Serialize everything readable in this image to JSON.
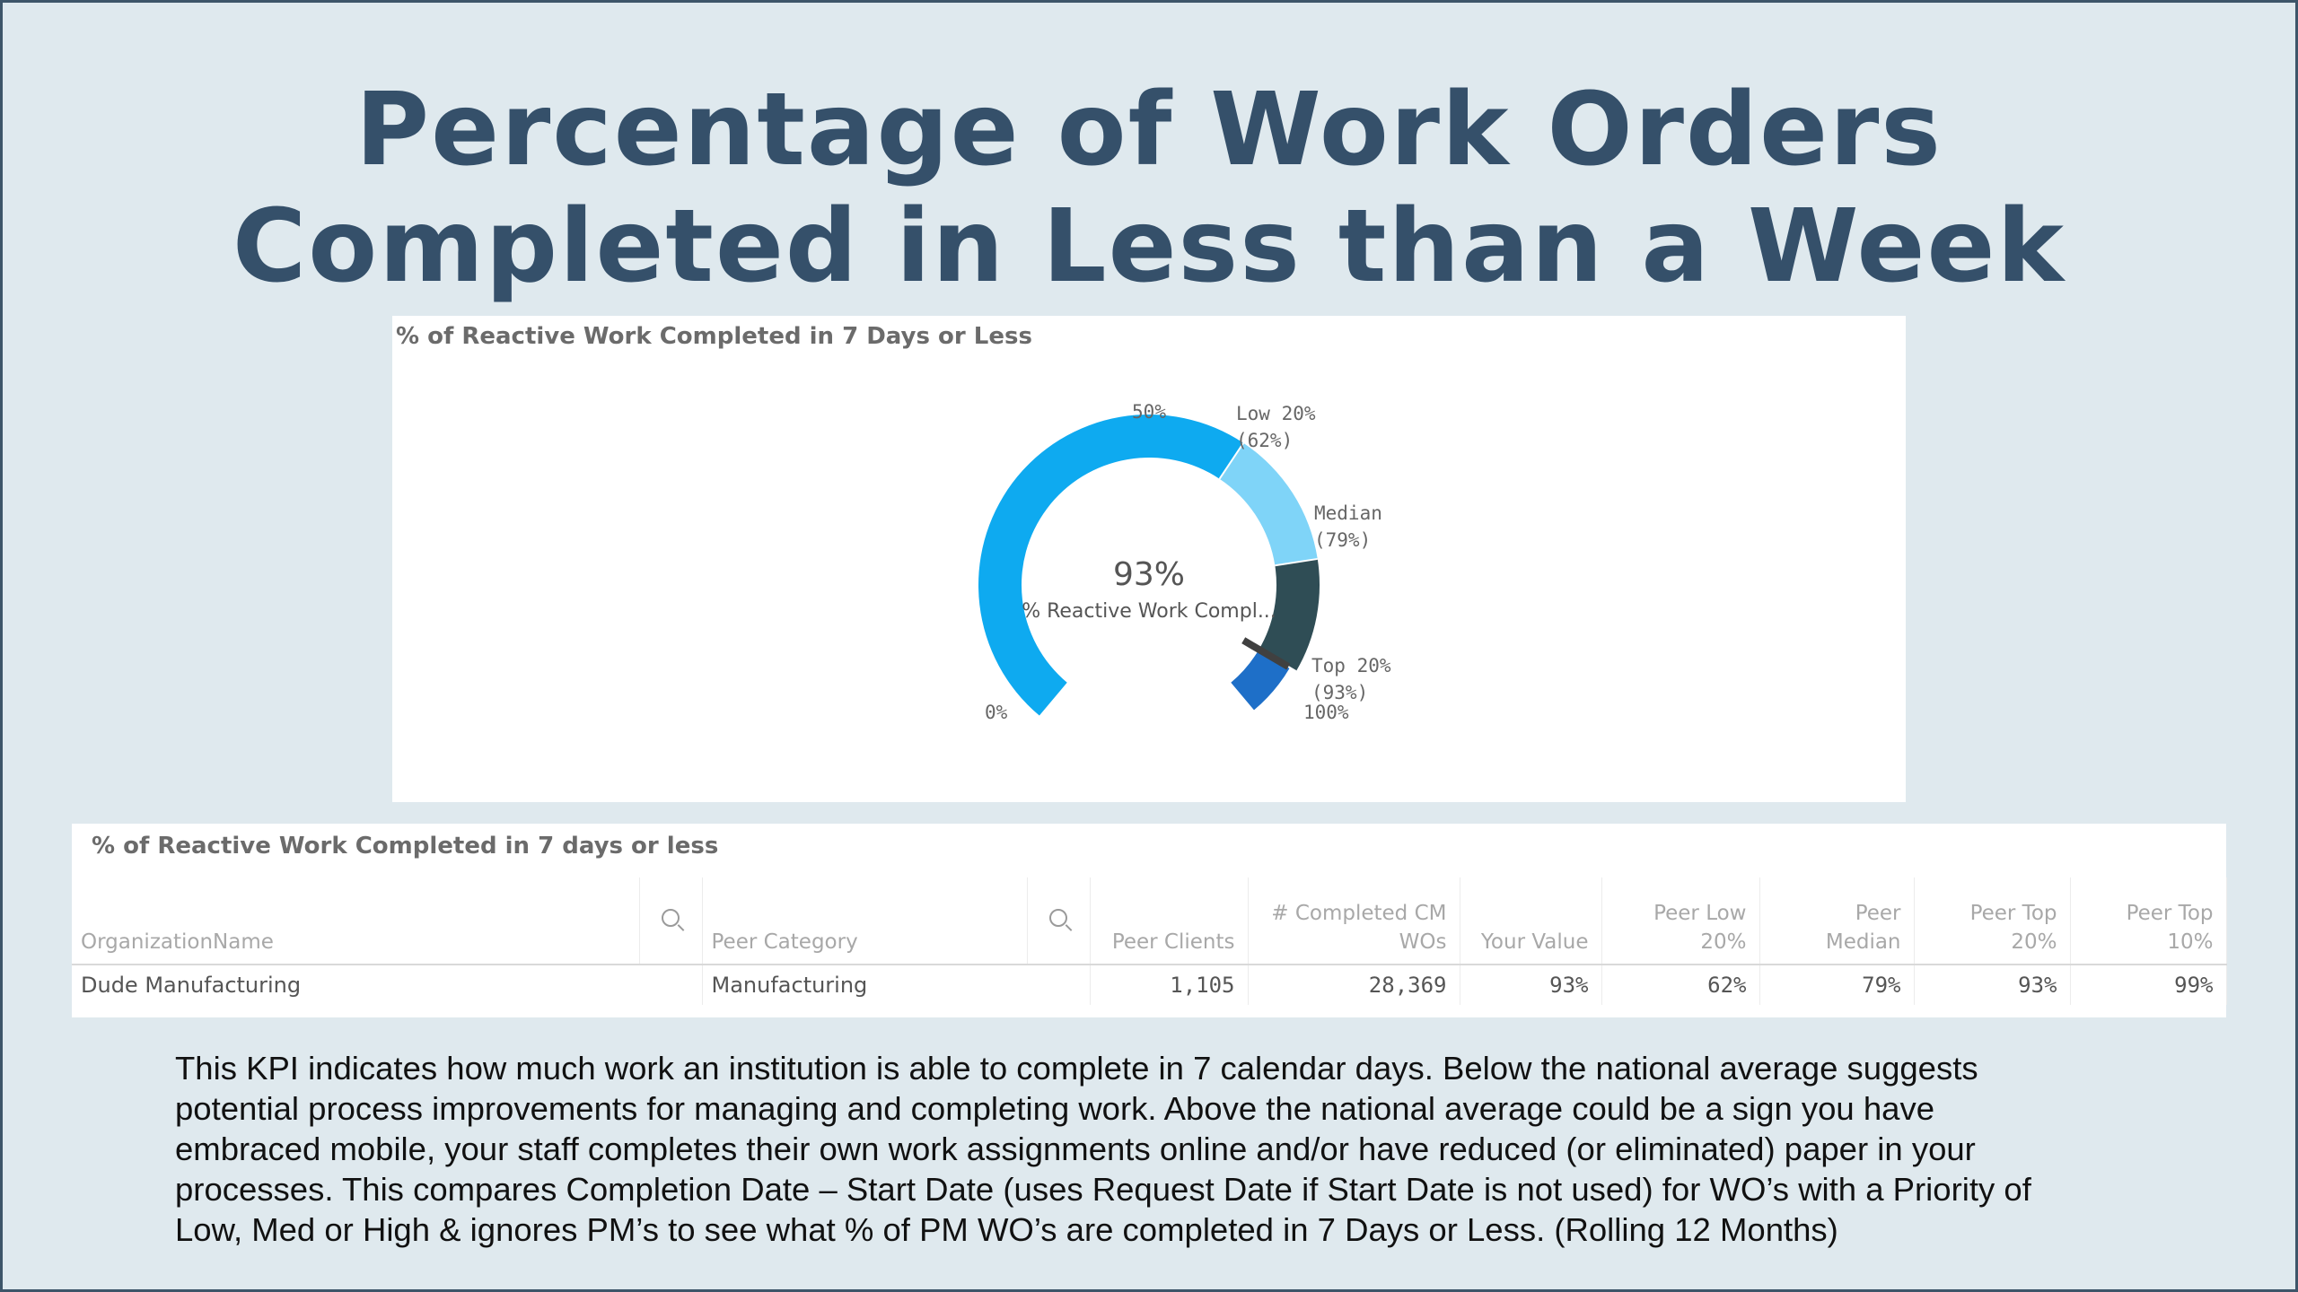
{
  "slide": {
    "title_lines": [
      "Percentage of Work Orders",
      "Completed in Less than a Week"
    ]
  },
  "gauge": {
    "panel_title": "% of Reactive Work Completed in 7 Days or Less",
    "value_text": "93%",
    "measure_label": "% Reactive Work Compl...",
    "labels": {
      "zero": "0%",
      "fifty": "50%",
      "hundred": "100%",
      "low20_line1": "Low 20%",
      "low20_line2": "(62%)",
      "median_line1": "Median",
      "median_line2": "(79%)",
      "top20_line1": "Top 20%",
      "top20_line2": "(93%)"
    },
    "colors": {
      "main": "#0eaaf0",
      "low": "#7fd4f8",
      "median": "#2f4d55",
      "top": "#1e6fc8"
    }
  },
  "chart_data": {
    "type": "gauge",
    "title": "% of Reactive Work Completed in 7 Days or Less",
    "value": 93,
    "min": 0,
    "max": 100,
    "unit": "%",
    "ticks": [
      0,
      50,
      100
    ],
    "bands": [
      {
        "name": "Low 20%",
        "from": 0,
        "to": 62,
        "color": "#0eaaf0"
      },
      {
        "name": "Median",
        "from": 62,
        "to": 79,
        "color": "#7fd4f8"
      },
      {
        "name": "Top 20%",
        "from": 79,
        "to": 93,
        "color": "#2f4d55"
      },
      {
        "name": "",
        "from": 93,
        "to": 100,
        "color": "#1e6fc8"
      }
    ],
    "markers": [
      {
        "name": "Low 20%",
        "value": 62
      },
      {
        "name": "Median",
        "value": 79
      },
      {
        "name": "Top 20%",
        "value": 93
      }
    ]
  },
  "table": {
    "panel_title": "% of Reactive Work Completed in 7 days or less",
    "headers": {
      "org": "OrganizationName",
      "peer_category": "Peer Category",
      "peer_clients": "Peer Clients",
      "completed_1": "# Completed CM",
      "completed_2": "WOs",
      "your_value": "Your Value",
      "peer_low_1": "Peer Low",
      "peer_low_2": "20%",
      "peer_median_1": "Peer",
      "peer_median_2": "Median",
      "peer_top20_1": "Peer Top",
      "peer_top20_2": "20%",
      "peer_top10_1": "Peer Top",
      "peer_top10_2": "10%"
    },
    "row": {
      "org": "Dude Manufacturing",
      "peer_category": "Manufacturing",
      "peer_clients": "1,105",
      "completed": "28,369",
      "your_value": "93%",
      "peer_low": "62%",
      "peer_median": "79%",
      "peer_top20": "93%",
      "peer_top10": "99%"
    }
  },
  "description": {
    "lines": [
      "This KPI indicates how much work an institution is able to complete in 7 calendar days.  Below the national average suggests",
      "potential process improvements for managing and completing work.  Above the national average could be a sign you have",
      "embraced mobile, your staff completes their own work assignments online and/or have reduced (or eliminated) paper in your",
      "processes. This compares Completion Date – Start Date (uses Request Date if Start Date is not used)  for WO’s with a Priority of",
      "Low, Med or High & ignores PM’s to see what % of PM WO’s are completed in 7 Days or Less. (Rolling 12 Months)"
    ]
  }
}
